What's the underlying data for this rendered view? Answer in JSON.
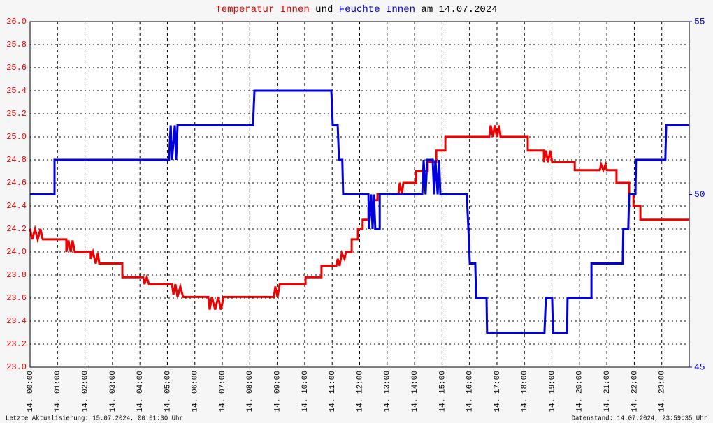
{
  "chart_data": {
    "type": "line",
    "title_connector": "und",
    "title_suffix": "am 14.07.2024",
    "footer_left": "Letzte Aktualisierung: 15.07.2024, 00:01:30 Uhr",
    "footer_right": "Datenstand: 14.07.2024, 23:59:35 Uhr",
    "grid": true,
    "xlim": [
      0,
      24
    ],
    "xticks": [
      {
        "value": 0,
        "label": "14. 00:00"
      },
      {
        "value": 1,
        "label": "14. 01:00"
      },
      {
        "value": 2,
        "label": "14. 02:00"
      },
      {
        "value": 3,
        "label": "14. 03:00"
      },
      {
        "value": 4,
        "label": "14. 04:00"
      },
      {
        "value": 5,
        "label": "14. 05:00"
      },
      {
        "value": 6,
        "label": "14. 06:00"
      },
      {
        "value": 7,
        "label": "14. 07:00"
      },
      {
        "value": 8,
        "label": "14. 08:00"
      },
      {
        "value": 9,
        "label": "14. 09:00"
      },
      {
        "value": 10,
        "label": "14. 10:00"
      },
      {
        "value": 11,
        "label": "14. 11:00"
      },
      {
        "value": 12,
        "label": "14. 12:00"
      },
      {
        "value": 13,
        "label": "14. 13:00"
      },
      {
        "value": 14,
        "label": "14. 14:00"
      },
      {
        "value": 15,
        "label": "14. 15:00"
      },
      {
        "value": 16,
        "label": "14. 16:00"
      },
      {
        "value": 17,
        "label": "14. 17:00"
      },
      {
        "value": 18,
        "label": "14. 18:00"
      },
      {
        "value": 19,
        "label": "14. 19:00"
      },
      {
        "value": 20,
        "label": "14. 20:00"
      },
      {
        "value": 21,
        "label": "14. 21:00"
      },
      {
        "value": 22,
        "label": "14. 22:00"
      },
      {
        "value": 23,
        "label": "14. 23:00"
      }
    ],
    "ylim": [
      23,
      26
    ],
    "yticks": [
      {
        "value": 23,
        "label": "23.0"
      },
      23.2,
      23.4,
      23.6,
      23.8,
      {
        "value": 24,
        "label": "24.0"
      },
      24.2,
      24.4,
      24.6,
      24.8,
      {
        "value": 25,
        "label": "25.0"
      },
      25.2,
      25.4,
      25.6,
      25.8,
      {
        "value": 26,
        "label": "26.0"
      }
    ],
    "y2lim": [
      45,
      55
    ],
    "y2ticks": [
      45,
      50,
      55
    ],
    "series": [
      {
        "name": "Temperatur Innen",
        "color": "#ee0000",
        "x": [
          0,
          0.08,
          0.18,
          0.28,
          0.38,
          0.46,
          1.32,
          1.32,
          1.4,
          1.48,
          1.55,
          1.63,
          2.21,
          2.21,
          2.29,
          2.39,
          2.47,
          2.52,
          3.36,
          3.36,
          4.12,
          4.17,
          4.25,
          4.33,
          5.17,
          5.22,
          5.29,
          5.37,
          5.47,
          5.57,
          6.49,
          6.54,
          6.62,
          6.74,
          6.85,
          6.95,
          7.05,
          8.88,
          8.93,
          9.01,
          9.09,
          10.03,
          10.03,
          10.61,
          10.61,
          11.15,
          11.2,
          11.27,
          11.35,
          11.45,
          11.5,
          11.71,
          11.71,
          11.94,
          11.94,
          12.11,
          12.11,
          12.32,
          12.32,
          12.52,
          12.52,
          12.65,
          12.65,
          13.41,
          13.46,
          13.54,
          13.59,
          14.05,
          14.05,
          14.48,
          14.48,
          14.79,
          14.79,
          15.12,
          15.12,
          16.72,
          16.77,
          16.85,
          16.92,
          17.0,
          17.08,
          17.13,
          18.12,
          18.12,
          18.71,
          18.71,
          18.78,
          18.86,
          18.94,
          19.01,
          19.83,
          19.83,
          20.74,
          20.79,
          20.87,
          20.95,
          21.0,
          21.35,
          21.35,
          21.81,
          21.81,
          21.97,
          21.97,
          22.22,
          22.22,
          24
        ],
        "values": [
          24.2,
          24.11,
          24.2,
          24.11,
          24.2,
          24.11,
          24.11,
          24.0,
          24.1,
          24.0,
          24.1,
          24.0,
          24.0,
          23.94,
          24.0,
          23.9,
          23.99,
          23.9,
          23.9,
          23.78,
          23.78,
          23.72,
          23.78,
          23.72,
          23.72,
          23.63,
          23.72,
          23.61,
          23.7,
          23.61,
          23.61,
          23.5,
          23.61,
          23.5,
          23.61,
          23.5,
          23.61,
          23.61,
          23.7,
          23.61,
          23.72,
          23.72,
          23.78,
          23.78,
          23.88,
          23.88,
          23.94,
          23.88,
          23.99,
          23.94,
          24.0,
          24.0,
          24.11,
          24.11,
          24.2,
          24.2,
          24.28,
          24.28,
          24.38,
          24.38,
          24.45,
          24.45,
          24.5,
          24.5,
          24.6,
          24.5,
          24.6,
          24.6,
          24.7,
          24.7,
          24.78,
          24.78,
          24.88,
          24.88,
          25.0,
          25.0,
          25.1,
          25.0,
          25.1,
          25.0,
          25.1,
          25.0,
          25.0,
          24.88,
          24.88,
          24.78,
          24.88,
          24.78,
          24.88,
          24.78,
          24.78,
          24.71,
          24.71,
          24.76,
          24.71,
          24.76,
          24.71,
          24.71,
          24.6,
          24.6,
          24.5,
          24.5,
          24.4,
          24.4,
          24.28,
          24.28
        ]
      },
      {
        "name": "Feuchte Innen",
        "color": "#0000dd",
        "axis": "y2",
        "x": [
          0,
          0.89,
          0.89,
          5.06,
          5.12,
          5.17,
          5.27,
          5.32,
          5.37,
          8.12,
          8.17,
          10.97,
          11.02,
          11.2,
          11.25,
          11.37,
          11.4,
          12.32,
          12.34,
          12.42,
          12.47,
          12.52,
          12.57,
          12.73,
          12.73,
          14.28,
          14.33,
          14.4,
          14.46,
          14.66,
          14.71,
          14.76,
          14.84,
          14.89,
          14.94,
          15.9,
          15.96,
          16.01,
          16.21,
          16.24,
          16.62,
          16.64,
          18.73,
          18.78,
          19.01,
          19.04,
          19.55,
          19.57,
          20.44,
          20.44,
          21.58,
          21.6,
          21.78,
          21.81,
          21.86,
          22.04,
          22.06,
          23.13,
          23.16,
          24
        ],
        "values": [
          50,
          50,
          51,
          51,
          52,
          51,
          52,
          51,
          52,
          52,
          53,
          53,
          52,
          52,
          51,
          51,
          50,
          50,
          49,
          50,
          49,
          50,
          49,
          49,
          50,
          50,
          51,
          50,
          51,
          51,
          50,
          51,
          50,
          51,
          50,
          50,
          49,
          48,
          48,
          47,
          47,
          46,
          46,
          47,
          47,
          46,
          46,
          47,
          47,
          48,
          48,
          49,
          49,
          50,
          50,
          50,
          51,
          51,
          52,
          52
        ]
      }
    ]
  }
}
